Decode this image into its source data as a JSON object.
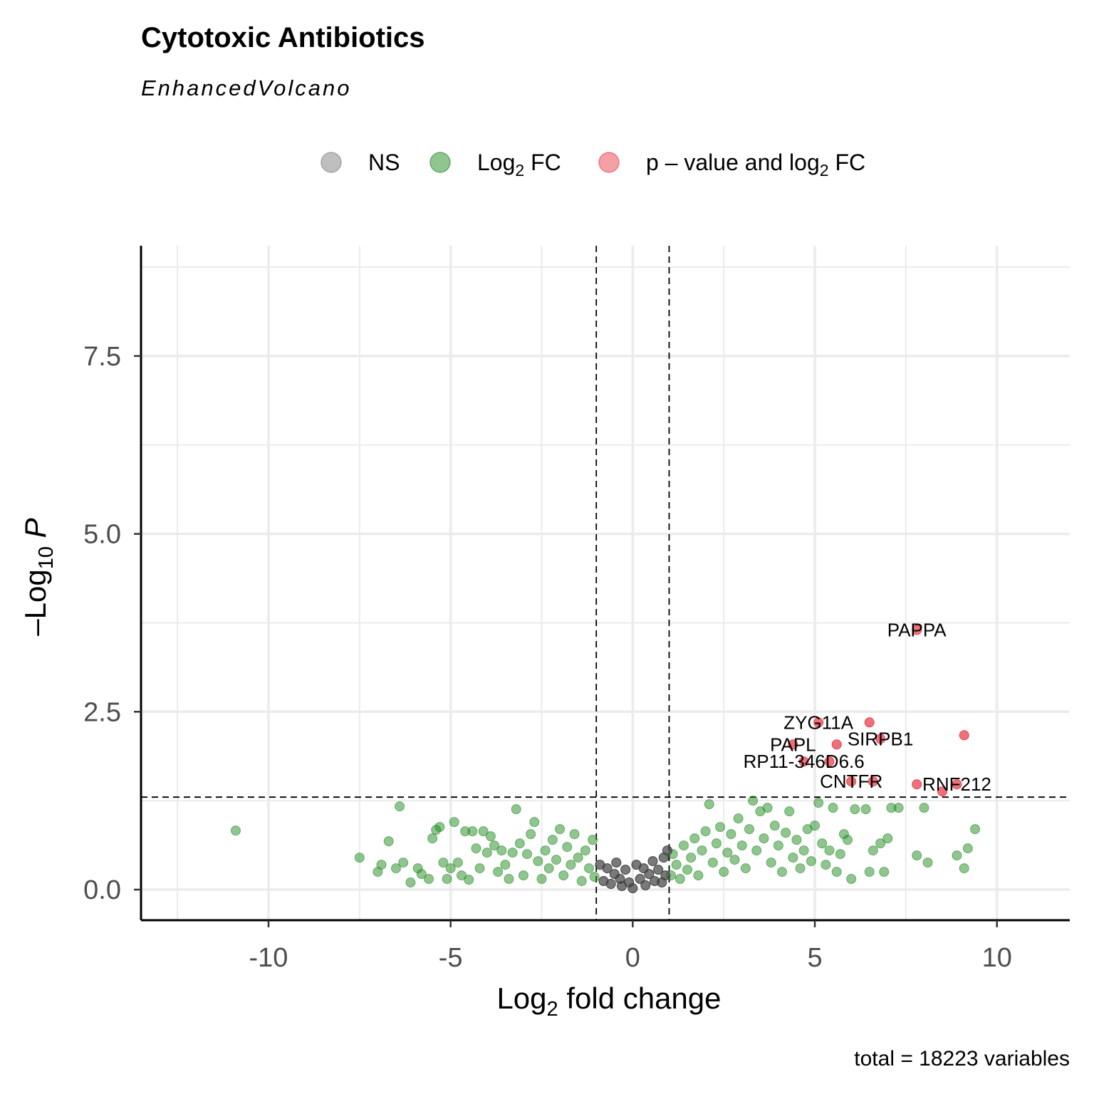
{
  "chart_data": {
    "type": "scatter",
    "title": "Cytotoxic Antibiotics",
    "subtitle": "EnhancedVolcano",
    "xlabel": "Log2 fold change",
    "ylabel": "-Log10 P",
    "caption": "total = 18223 variables",
    "xlim": [
      -13.5,
      12
    ],
    "ylim": [
      -0.43,
      9.05
    ],
    "x_ticks": [
      -10,
      -5,
      0,
      5,
      10
    ],
    "x_tick_labels": [
      "-10",
      "-5",
      "0",
      "5",
      "10"
    ],
    "y_ticks": [
      0,
      2.5,
      5,
      7.5
    ],
    "y_tick_labels": [
      "0.0",
      "2.5",
      "5.0",
      "7.5"
    ],
    "grid": true,
    "fc_cutoff": 1,
    "p_cutoff": 1.3,
    "legend": {
      "position": "top",
      "entries": [
        {
          "key": "ns",
          "label": "NS",
          "sub": "",
          "suffix": "",
          "color": "#808080"
        },
        {
          "key": "fc",
          "label": "Log",
          "sub": "2",
          "suffix": " FC",
          "color": "#228B22"
        },
        {
          "key": "pfc",
          "label": "p – value and log",
          "sub": "2",
          "suffix": " FC",
          "color": "#E8414E"
        }
      ]
    },
    "colors": {
      "ns": "#404040",
      "fc": "#228B22",
      "pfc": "#E8414E"
    },
    "significant_points": [
      {
        "x": 7.8,
        "y": 3.65,
        "label": "PAPPA"
      },
      {
        "x": 5.1,
        "y": 2.35,
        "label": "ZYG11A"
      },
      {
        "x": 6.5,
        "y": 2.35,
        "label": ""
      },
      {
        "x": 9.1,
        "y": 2.17,
        "label": ""
      },
      {
        "x": 6.8,
        "y": 2.12,
        "label": "SIRPB1"
      },
      {
        "x": 5.6,
        "y": 2.04,
        "label": ""
      },
      {
        "x": 4.4,
        "y": 2.04,
        "label": "PAPL"
      },
      {
        "x": 4.7,
        "y": 1.8,
        "label": "RP11-346D6.6"
      },
      {
        "x": 5.4,
        "y": 1.8,
        "label": ""
      },
      {
        "x": 6.0,
        "y": 1.52,
        "label": "CNTFR"
      },
      {
        "x": 6.6,
        "y": 1.52,
        "label": ""
      },
      {
        "x": 7.8,
        "y": 1.48,
        "label": ""
      },
      {
        "x": 8.9,
        "y": 1.48,
        "label": "RNF212"
      },
      {
        "x": 8.5,
        "y": 1.38,
        "label": ""
      }
    ],
    "fc_points": [
      {
        "x": -10.9,
        "y": 0.83
      },
      {
        "x": -7.5,
        "y": 0.45
      },
      {
        "x": -7.0,
        "y": 0.25
      },
      {
        "x": -6.9,
        "y": 0.35
      },
      {
        "x": -6.7,
        "y": 0.68
      },
      {
        "x": -6.5,
        "y": 0.3
      },
      {
        "x": -6.4,
        "y": 1.17
      },
      {
        "x": -6.3,
        "y": 0.38
      },
      {
        "x": -6.1,
        "y": 0.1
      },
      {
        "x": -5.9,
        "y": 0.3
      },
      {
        "x": -5.8,
        "y": 0.22
      },
      {
        "x": -5.6,
        "y": 0.15
      },
      {
        "x": -5.5,
        "y": 0.72
      },
      {
        "x": -5.4,
        "y": 0.84
      },
      {
        "x": -5.3,
        "y": 0.88
      },
      {
        "x": -5.2,
        "y": 0.38
      },
      {
        "x": -5.1,
        "y": 0.15
      },
      {
        "x": -5.0,
        "y": 0.3
      },
      {
        "x": -4.9,
        "y": 0.95
      },
      {
        "x": -4.8,
        "y": 0.38
      },
      {
        "x": -4.7,
        "y": 0.2
      },
      {
        "x": -4.6,
        "y": 0.82
      },
      {
        "x": -4.5,
        "y": 0.14
      },
      {
        "x": -4.4,
        "y": 0.82
      },
      {
        "x": -4.3,
        "y": 0.58
      },
      {
        "x": -4.2,
        "y": 0.3
      },
      {
        "x": -4.1,
        "y": 0.82
      },
      {
        "x": -4.0,
        "y": 0.52
      },
      {
        "x": -3.9,
        "y": 0.75
      },
      {
        "x": -3.8,
        "y": 0.62
      },
      {
        "x": -3.7,
        "y": 0.25
      },
      {
        "x": -3.6,
        "y": 0.55
      },
      {
        "x": -3.5,
        "y": 0.35
      },
      {
        "x": -3.4,
        "y": 0.15
      },
      {
        "x": -3.3,
        "y": 0.52
      },
      {
        "x": -3.2,
        "y": 1.13
      },
      {
        "x": -3.1,
        "y": 0.65
      },
      {
        "x": -3.0,
        "y": 0.2
      },
      {
        "x": -2.9,
        "y": 0.5
      },
      {
        "x": -2.8,
        "y": 0.78
      },
      {
        "x": -2.7,
        "y": 0.95
      },
      {
        "x": -2.6,
        "y": 0.4
      },
      {
        "x": -2.5,
        "y": 0.15
      },
      {
        "x": -2.4,
        "y": 0.55
      },
      {
        "x": -2.3,
        "y": 0.3
      },
      {
        "x": -2.2,
        "y": 0.7
      },
      {
        "x": -2.1,
        "y": 0.42
      },
      {
        "x": -2.0,
        "y": 0.85
      },
      {
        "x": -1.9,
        "y": 0.2
      },
      {
        "x": -1.8,
        "y": 0.6
      },
      {
        "x": -1.7,
        "y": 0.35
      },
      {
        "x": -1.6,
        "y": 0.78
      },
      {
        "x": -1.5,
        "y": 0.45
      },
      {
        "x": -1.4,
        "y": 0.12
      },
      {
        "x": -1.3,
        "y": 0.55
      },
      {
        "x": -1.2,
        "y": 0.3
      },
      {
        "x": -1.1,
        "y": 0.7
      },
      {
        "x": -1.05,
        "y": 0.18
      },
      {
        "x": 1.05,
        "y": 0.2
      },
      {
        "x": 1.1,
        "y": 0.5
      },
      {
        "x": 1.2,
        "y": 0.35
      },
      {
        "x": 1.3,
        "y": 0.15
      },
      {
        "x": 1.4,
        "y": 0.62
      },
      {
        "x": 1.5,
        "y": 0.28
      },
      {
        "x": 1.6,
        "y": 0.45
      },
      {
        "x": 1.7,
        "y": 0.72
      },
      {
        "x": 1.8,
        "y": 0.2
      },
      {
        "x": 1.9,
        "y": 0.55
      },
      {
        "x": 2.0,
        "y": 0.82
      },
      {
        "x": 2.1,
        "y": 1.2
      },
      {
        "x": 2.2,
        "y": 0.38
      },
      {
        "x": 2.3,
        "y": 0.65
      },
      {
        "x": 2.4,
        "y": 0.88
      },
      {
        "x": 2.5,
        "y": 0.25
      },
      {
        "x": 2.6,
        "y": 0.52
      },
      {
        "x": 2.7,
        "y": 0.78
      },
      {
        "x": 2.8,
        "y": 0.42
      },
      {
        "x": 2.9,
        "y": 1.0
      },
      {
        "x": 3.0,
        "y": 0.62
      },
      {
        "x": 3.1,
        "y": 0.3
      },
      {
        "x": 3.2,
        "y": 0.85
      },
      {
        "x": 3.3,
        "y": 1.25
      },
      {
        "x": 3.4,
        "y": 0.55
      },
      {
        "x": 3.5,
        "y": 1.1
      },
      {
        "x": 3.6,
        "y": 0.72
      },
      {
        "x": 3.7,
        "y": 1.15
      },
      {
        "x": 3.8,
        "y": 0.38
      },
      {
        "x": 3.9,
        "y": 0.9
      },
      {
        "x": 4.0,
        "y": 0.62
      },
      {
        "x": 4.1,
        "y": 0.25
      },
      {
        "x": 4.2,
        "y": 0.8
      },
      {
        "x": 4.3,
        "y": 1.1
      },
      {
        "x": 4.4,
        "y": 0.45
      },
      {
        "x": 4.5,
        "y": 0.7
      },
      {
        "x": 4.6,
        "y": 0.3
      },
      {
        "x": 4.7,
        "y": 0.55
      },
      {
        "x": 4.8,
        "y": 0.85
      },
      {
        "x": 4.9,
        "y": 0.4
      },
      {
        "x": 5.0,
        "y": 0.9
      },
      {
        "x": 5.1,
        "y": 1.22
      },
      {
        "x": 5.2,
        "y": 0.65
      },
      {
        "x": 5.3,
        "y": 0.35
      },
      {
        "x": 5.4,
        "y": 0.55
      },
      {
        "x": 5.5,
        "y": 1.15
      },
      {
        "x": 5.6,
        "y": 0.25
      },
      {
        "x": 5.7,
        "y": 0.5
      },
      {
        "x": 5.8,
        "y": 0.78
      },
      {
        "x": 5.9,
        "y": 0.7
      },
      {
        "x": 6.0,
        "y": 0.15
      },
      {
        "x": 6.1,
        "y": 1.13
      },
      {
        "x": 6.4,
        "y": 1.13
      },
      {
        "x": 6.5,
        "y": 0.25
      },
      {
        "x": 6.6,
        "y": 0.55
      },
      {
        "x": 6.8,
        "y": 0.65
      },
      {
        "x": 6.9,
        "y": 0.25
      },
      {
        "x": 7.0,
        "y": 0.72
      },
      {
        "x": 7.1,
        "y": 1.15
      },
      {
        "x": 7.3,
        "y": 1.15
      },
      {
        "x": 7.8,
        "y": 0.48
      },
      {
        "x": 8.0,
        "y": 1.15
      },
      {
        "x": 8.1,
        "y": 0.38
      },
      {
        "x": 8.9,
        "y": 0.48
      },
      {
        "x": 9.1,
        "y": 0.3
      },
      {
        "x": 9.2,
        "y": 0.58
      },
      {
        "x": 9.4,
        "y": 0.85
      }
    ],
    "ns_points": [
      {
        "x": -0.9,
        "y": 0.35
      },
      {
        "x": -0.8,
        "y": 0.12
      },
      {
        "x": -0.7,
        "y": 0.3
      },
      {
        "x": -0.6,
        "y": 0.08
      },
      {
        "x": -0.5,
        "y": 0.22
      },
      {
        "x": -0.45,
        "y": 0.38
      },
      {
        "x": -0.35,
        "y": 0.15
      },
      {
        "x": -0.3,
        "y": 0.05
      },
      {
        "x": -0.2,
        "y": 0.28
      },
      {
        "x": -0.1,
        "y": 0.1
      },
      {
        "x": 0.0,
        "y": 0.02
      },
      {
        "x": 0.1,
        "y": 0.35
      },
      {
        "x": 0.2,
        "y": 0.15
      },
      {
        "x": 0.3,
        "y": 0.3
      },
      {
        "x": 0.35,
        "y": 0.06
      },
      {
        "x": 0.45,
        "y": 0.22
      },
      {
        "x": 0.55,
        "y": 0.4
      },
      {
        "x": 0.6,
        "y": 0.12
      },
      {
        "x": 0.7,
        "y": 0.28
      },
      {
        "x": 0.8,
        "y": 0.1
      },
      {
        "x": 0.85,
        "y": 0.45
      },
      {
        "x": 0.9,
        "y": 0.2
      },
      {
        "x": 0.95,
        "y": 0.55
      }
    ]
  }
}
